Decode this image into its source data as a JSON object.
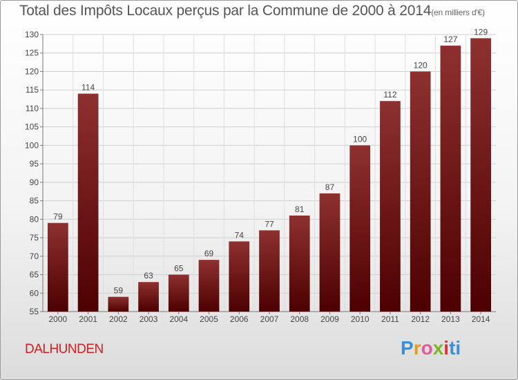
{
  "chart_data": {
    "type": "bar",
    "title": "Total des Impôts Locaux perçus par la Commune de 2000 à 2014",
    "subtitle": "(en milliers d'€)",
    "categories": [
      "2000",
      "2001",
      "2002",
      "2003",
      "2004",
      "2005",
      "2006",
      "2007",
      "2008",
      "2009",
      "2010",
      "2011",
      "2012",
      "2013",
      "2014"
    ],
    "values": [
      79,
      114,
      59,
      63,
      65,
      69,
      74,
      77,
      81,
      87,
      100,
      112,
      120,
      127,
      129
    ],
    "ylim": [
      55,
      130
    ],
    "yticks": [
      55,
      60,
      65,
      70,
      75,
      80,
      85,
      90,
      95,
      100,
      105,
      110,
      115,
      120,
      125,
      130
    ],
    "xlabel": "",
    "ylabel": "",
    "grid": true,
    "bar_color": "#7a1a1a"
  },
  "commune": "DALHUNDEN",
  "brand": [
    "P",
    "r",
    "o",
    "x",
    "i",
    "ti"
  ]
}
